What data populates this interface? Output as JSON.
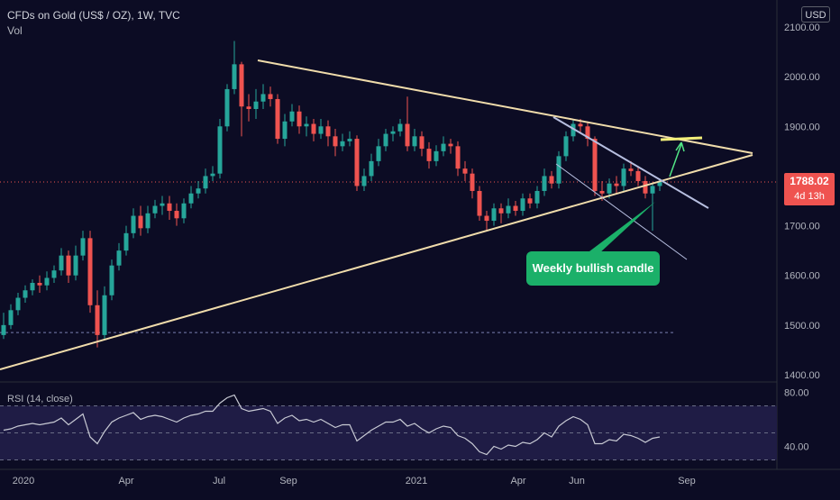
{
  "header": {
    "symbol": "CFDs on Gold (US$ / OZ), 1W, TVC",
    "volume_label": "Vol",
    "currency": "USD"
  },
  "price_tag": {
    "price": "1788.02",
    "countdown": "4d 13h"
  },
  "annotation": {
    "text": "Weekly bullish candle"
  },
  "rsi": {
    "label": "RSI (14, close)"
  },
  "colors": {
    "bg": "#0c0c24",
    "up": "#26a69a",
    "down": "#ef5350",
    "trendline": "#f0dcab",
    "channel": "#b7bfe0",
    "arrow": "#52e686",
    "target": "#f3f07a",
    "rsi_line": "#c8cad4",
    "rsi_band": "#1f1c45",
    "callout": "#1bb069"
  },
  "chart_data": [
    {
      "type": "candlestick",
      "title": "CFDs on Gold (US$ / OZ), 1W, TVC",
      "y_ticks": [
        "2100.00",
        "2000.00",
        "1900.00",
        "1800.00",
        "1700.00",
        "1600.00",
        "1500.00",
        "1400.00"
      ],
      "ylim": [
        1400,
        2100
      ],
      "x_ticks": [
        "2020",
        "Apr",
        "Jul",
        "Sep",
        "2021",
        "Apr",
        "Jun",
        "Sep"
      ],
      "last_price": 1788.02,
      "candles": [
        [
          1480,
          1500,
          1472,
          1525
        ],
        [
          1500,
          1530,
          1492,
          1542
        ],
        [
          1530,
          1555,
          1520,
          1565
        ],
        [
          1555,
          1570,
          1545,
          1580
        ],
        [
          1570,
          1585,
          1560,
          1592
        ],
        [
          1585,
          1580,
          1565,
          1600
        ],
        [
          1580,
          1595,
          1570,
          1608
        ],
        [
          1595,
          1610,
          1585,
          1620
        ],
        [
          1610,
          1640,
          1600,
          1655
        ],
        [
          1640,
          1600,
          1585,
          1650
        ],
        [
          1600,
          1640,
          1590,
          1660
        ],
        [
          1640,
          1675,
          1630,
          1690
        ],
        [
          1675,
          1540,
          1525,
          1690
        ],
        [
          1540,
          1480,
          1455,
          1570
        ],
        [
          1480,
          1560,
          1470,
          1578
        ],
        [
          1560,
          1620,
          1550,
          1632
        ],
        [
          1620,
          1650,
          1610,
          1665
        ],
        [
          1650,
          1685,
          1640,
          1700
        ],
        [
          1685,
          1720,
          1675,
          1735
        ],
        [
          1720,
          1695,
          1680,
          1740
        ],
        [
          1695,
          1725,
          1685,
          1740
        ],
        [
          1725,
          1740,
          1715,
          1752
        ],
        [
          1740,
          1745,
          1722,
          1760
        ],
        [
          1745,
          1730,
          1712,
          1760
        ],
        [
          1730,
          1715,
          1700,
          1745
        ],
        [
          1715,
          1745,
          1705,
          1755
        ],
        [
          1745,
          1765,
          1735,
          1780
        ],
        [
          1765,
          1775,
          1755,
          1790
        ],
        [
          1775,
          1800,
          1765,
          1815
        ],
        [
          1800,
          1805,
          1790,
          1820
        ],
        [
          1805,
          1900,
          1795,
          1915
        ],
        [
          1900,
          1975,
          1890,
          1985
        ],
        [
          1975,
          2025,
          1965,
          2072
        ],
        [
          2025,
          1940,
          1880,
          2030
        ],
        [
          1940,
          1935,
          1910,
          1965
        ],
        [
          1935,
          1950,
          1915,
          1975
        ],
        [
          1950,
          1965,
          1935,
          1985
        ],
        [
          1965,
          1955,
          1940,
          1980
        ],
        [
          1955,
          1875,
          1865,
          1965
        ],
        [
          1875,
          1910,
          1860,
          1925
        ],
        [
          1910,
          1930,
          1900,
          1945
        ],
        [
          1930,
          1900,
          1885,
          1942
        ],
        [
          1900,
          1905,
          1880,
          1920
        ],
        [
          1905,
          1885,
          1870,
          1915
        ],
        [
          1885,
          1900,
          1875,
          1915
        ],
        [
          1900,
          1880,
          1860,
          1912
        ],
        [
          1880,
          1860,
          1840,
          1895
        ],
        [
          1860,
          1870,
          1850,
          1885
        ],
        [
          1870,
          1875,
          1860,
          1890
        ],
        [
          1875,
          1780,
          1770,
          1882
        ],
        [
          1780,
          1800,
          1770,
          1815
        ],
        [
          1800,
          1830,
          1790,
          1845
        ],
        [
          1830,
          1860,
          1820,
          1875
        ],
        [
          1860,
          1885,
          1850,
          1895
        ],
        [
          1885,
          1890,
          1870,
          1900
        ],
        [
          1890,
          1905,
          1880,
          1915
        ],
        [
          1905,
          1860,
          1850,
          1960
        ],
        [
          1860,
          1880,
          1850,
          1895
        ],
        [
          1880,
          1855,
          1840,
          1890
        ],
        [
          1855,
          1830,
          1815,
          1868
        ],
        [
          1830,
          1850,
          1820,
          1862
        ],
        [
          1850,
          1865,
          1840,
          1880
        ],
        [
          1865,
          1860,
          1845,
          1875
        ],
        [
          1860,
          1815,
          1800,
          1870
        ],
        [
          1815,
          1805,
          1790,
          1830
        ],
        [
          1805,
          1770,
          1755,
          1815
        ],
        [
          1770,
          1720,
          1710,
          1780
        ],
        [
          1720,
          1710,
          1690,
          1730
        ],
        [
          1710,
          1735,
          1700,
          1745
        ],
        [
          1735,
          1725,
          1705,
          1745
        ],
        [
          1725,
          1740,
          1715,
          1755
        ],
        [
          1740,
          1730,
          1720,
          1750
        ],
        [
          1730,
          1755,
          1720,
          1765
        ],
        [
          1755,
          1745,
          1735,
          1765
        ],
        [
          1745,
          1770,
          1735,
          1780
        ],
        [
          1770,
          1800,
          1760,
          1815
        ],
        [
          1800,
          1785,
          1775,
          1810
        ],
        [
          1785,
          1840,
          1775,
          1850
        ],
        [
          1840,
          1880,
          1830,
          1890
        ],
        [
          1880,
          1905,
          1870,
          1915
        ],
        [
          1905,
          1900,
          1885,
          1915
        ],
        [
          1900,
          1875,
          1860,
          1910
        ],
        [
          1875,
          1770,
          1760,
          1880
        ],
        [
          1770,
          1765,
          1750,
          1790
        ],
        [
          1765,
          1785,
          1755,
          1795
        ],
        [
          1785,
          1780,
          1765,
          1800
        ],
        [
          1780,
          1815,
          1770,
          1825
        ],
        [
          1815,
          1810,
          1800,
          1830
        ],
        [
          1810,
          1790,
          1780,
          1820
        ],
        [
          1790,
          1765,
          1755,
          1800
        ],
        [
          1765,
          1780,
          1690,
          1785
        ],
        [
          1780,
          1788.02,
          1770,
          1795
        ]
      ]
    },
    {
      "type": "line",
      "title": "RSI (14, close)",
      "y_ticks": [
        "80.00",
        "40.00"
      ],
      "ylim": [
        25,
        85
      ],
      "reference_lines": [
        70,
        50,
        30
      ],
      "values": [
        52,
        53,
        55,
        56,
        57,
        56,
        57,
        58,
        61,
        56,
        60,
        64,
        47,
        42,
        51,
        58,
        61,
        63,
        65,
        60,
        62,
        63,
        62,
        60,
        58,
        61,
        63,
        64,
        66,
        66,
        72,
        76,
        78,
        68,
        66,
        67,
        68,
        66,
        57,
        61,
        63,
        59,
        60,
        58,
        60,
        57,
        54,
        56,
        56,
        44,
        48,
        52,
        55,
        58,
        58,
        60,
        55,
        57,
        53,
        50,
        53,
        55,
        54,
        48,
        46,
        42,
        36,
        34,
        40,
        38,
        41,
        40,
        43,
        42,
        45,
        50,
        47,
        55,
        59,
        62,
        60,
        56,
        42,
        42,
        45,
        44,
        49,
        48,
        46,
        43,
        46,
        47
      ]
    }
  ]
}
